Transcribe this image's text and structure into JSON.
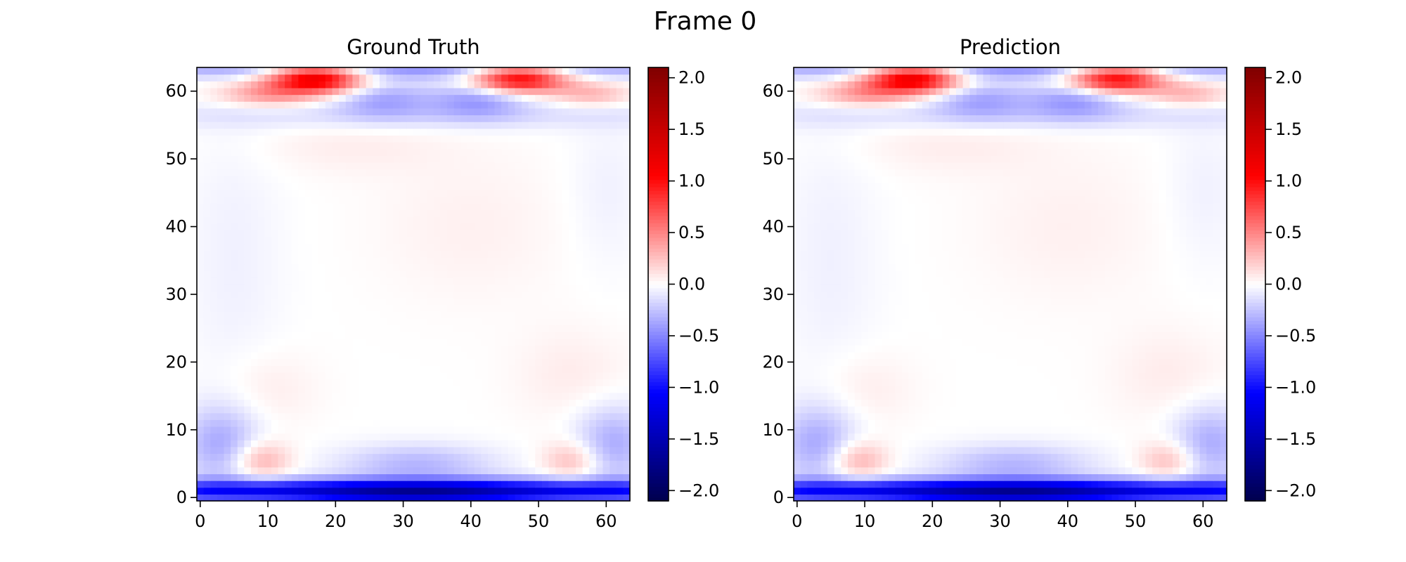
{
  "figure": {
    "suptitle": "Frame 0"
  },
  "chart_data": [
    {
      "type": "heatmap",
      "title": "Ground Truth",
      "xlabel": "",
      "ylabel": "",
      "grid_size": [
        64,
        64
      ],
      "x_ticks": [
        0,
        10,
        20,
        30,
        40,
        50,
        60
      ],
      "y_ticks": [
        0,
        10,
        20,
        30,
        40,
        50,
        60
      ],
      "xlim": [
        -0.5,
        63.5
      ],
      "ylim": [
        -0.5,
        63.5
      ],
      "colormap": "seismic",
      "colorbar": {
        "vmin": -2.1,
        "vmax": 2.1,
        "ticks": [
          -2.0,
          -1.5,
          -1.0,
          -0.5,
          0.0,
          0.5,
          1.0,
          1.5,
          2.0
        ],
        "tick_labels": [
          "−2.0",
          "−1.5",
          "−1.0",
          "−0.5",
          "0.0",
          "0.5",
          "1.0",
          "1.5",
          "2.0"
        ]
      },
      "features": [
        {
          "x": 32,
          "y": 1,
          "sx": 40,
          "sy": 1.2,
          "amp": -1.3
        },
        {
          "x": 32,
          "y": 0.5,
          "sx": 10,
          "sy": 1.2,
          "amp": -0.4
        },
        {
          "x": 17,
          "y": 62,
          "sx": 5,
          "sy": 1.5,
          "amp": 1.3
        },
        {
          "x": 47,
          "y": 62,
          "sx": 5,
          "sy": 1.5,
          "amp": 1.2
        },
        {
          "x": 10,
          "y": 59.5,
          "sx": 5,
          "sy": 1.2,
          "amp": 0.4
        },
        {
          "x": 58,
          "y": 59.5,
          "sx": 4,
          "sy": 1.2,
          "amp": 0.3
        },
        {
          "x": 32,
          "y": 63,
          "sx": 40,
          "sy": 0.8,
          "amp": -0.4
        },
        {
          "x": 27,
          "y": 59,
          "sx": 5,
          "sy": 2,
          "amp": -0.35
        },
        {
          "x": 41,
          "y": 59,
          "sx": 5,
          "sy": 2,
          "amp": -0.4
        },
        {
          "x": 9,
          "y": 5.5,
          "sx": 3,
          "sy": 2,
          "amp": 0.35
        },
        {
          "x": 55,
          "y": 5.5,
          "sx": 3,
          "sy": 2,
          "amp": 0.3
        },
        {
          "x": 3,
          "y": 8,
          "sx": 4,
          "sy": 4,
          "amp": -0.35
        },
        {
          "x": 61,
          "y": 8,
          "sx": 4,
          "sy": 4,
          "amp": -0.35
        },
        {
          "x": 32,
          "y": 5,
          "sx": 8,
          "sy": 2,
          "amp": -0.3
        },
        {
          "x": 32,
          "y": 56.5,
          "sx": 35,
          "sy": 1.5,
          "amp": -0.15
        },
        {
          "x": 55,
          "y": 18,
          "sx": 6,
          "sy": 5,
          "amp": 0.08
        },
        {
          "x": 10,
          "y": 16,
          "sx": 5,
          "sy": 4,
          "amp": 0.08
        },
        {
          "x": 40,
          "y": 40,
          "sx": 10,
          "sy": 8,
          "amp": 0.06
        },
        {
          "x": 22,
          "y": 52,
          "sx": 10,
          "sy": 3,
          "amp": 0.07
        },
        {
          "x": 5,
          "y": 35,
          "sx": 5,
          "sy": 15,
          "amp": -0.06
        },
        {
          "x": 60,
          "y": 45,
          "sx": 4,
          "sy": 8,
          "amp": -0.06
        }
      ]
    },
    {
      "type": "heatmap",
      "title": "Prediction",
      "xlabel": "",
      "ylabel": "",
      "grid_size": [
        64,
        64
      ],
      "x_ticks": [
        0,
        10,
        20,
        30,
        40,
        50,
        60
      ],
      "y_ticks": [
        0,
        10,
        20,
        30,
        40,
        50,
        60
      ],
      "xlim": [
        -0.5,
        63.5
      ],
      "ylim": [
        -0.5,
        63.5
      ],
      "colormap": "seismic",
      "colorbar": {
        "vmin": -2.1,
        "vmax": 2.1,
        "ticks": [
          -2.0,
          -1.5,
          -1.0,
          -0.5,
          0.0,
          0.5,
          1.0,
          1.5,
          2.0
        ],
        "tick_labels": [
          "−2.0",
          "−1.5",
          "−1.0",
          "−0.5",
          "0.0",
          "0.5",
          "1.0",
          "1.5",
          "2.0"
        ]
      },
      "features": [
        {
          "x": 32,
          "y": 1,
          "sx": 40,
          "sy": 1.2,
          "amp": -1.3
        },
        {
          "x": 32,
          "y": 0.5,
          "sx": 10,
          "sy": 1.2,
          "amp": -0.4
        },
        {
          "x": 17,
          "y": 62,
          "sx": 5,
          "sy": 1.5,
          "amp": 1.3
        },
        {
          "x": 47,
          "y": 62,
          "sx": 5,
          "sy": 1.5,
          "amp": 1.2
        },
        {
          "x": 10,
          "y": 59.5,
          "sx": 5,
          "sy": 1.2,
          "amp": 0.4
        },
        {
          "x": 58,
          "y": 59.5,
          "sx": 4,
          "sy": 1.2,
          "amp": 0.3
        },
        {
          "x": 32,
          "y": 63,
          "sx": 40,
          "sy": 0.8,
          "amp": -0.4
        },
        {
          "x": 27,
          "y": 59,
          "sx": 5,
          "sy": 2,
          "amp": -0.35
        },
        {
          "x": 41,
          "y": 59,
          "sx": 5,
          "sy": 2,
          "amp": -0.4
        },
        {
          "x": 9,
          "y": 5.5,
          "sx": 3,
          "sy": 2,
          "amp": 0.35
        },
        {
          "x": 55,
          "y": 5.5,
          "sx": 3,
          "sy": 2,
          "amp": 0.3
        },
        {
          "x": 3,
          "y": 8,
          "sx": 4,
          "sy": 4,
          "amp": -0.35
        },
        {
          "x": 61,
          "y": 8,
          "sx": 4,
          "sy": 4,
          "amp": -0.35
        },
        {
          "x": 32,
          "y": 5,
          "sx": 8,
          "sy": 2,
          "amp": -0.3
        },
        {
          "x": 32,
          "y": 56.5,
          "sx": 35,
          "sy": 1.5,
          "amp": -0.15
        },
        {
          "x": 55,
          "y": 18,
          "sx": 6,
          "sy": 5,
          "amp": 0.08
        },
        {
          "x": 10,
          "y": 16,
          "sx": 5,
          "sy": 4,
          "amp": 0.08
        },
        {
          "x": 40,
          "y": 40,
          "sx": 10,
          "sy": 8,
          "amp": 0.06
        },
        {
          "x": 22,
          "y": 52,
          "sx": 10,
          "sy": 3,
          "amp": 0.07
        },
        {
          "x": 5,
          "y": 35,
          "sx": 5,
          "sy": 15,
          "amp": -0.06
        },
        {
          "x": 60,
          "y": 45,
          "sx": 4,
          "sy": 8,
          "amp": -0.06
        }
      ]
    }
  ]
}
